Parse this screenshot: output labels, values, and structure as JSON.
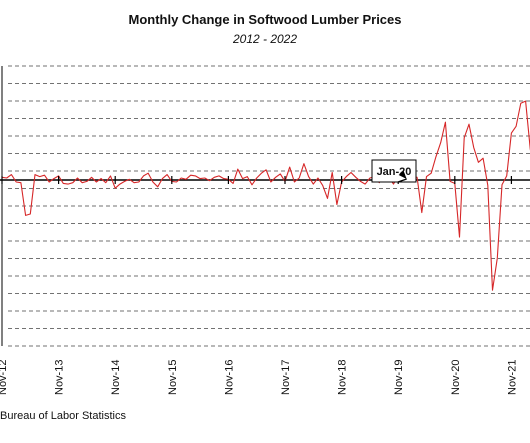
{
  "chart_data": {
    "type": "line",
    "title": "Monthly Change in Softwood Lumber Prices",
    "subtitle": "2012 - 2022",
    "xlabel": "",
    "ylabel": "",
    "x_tick_labels": [
      "Nov-12",
      "Nov-13",
      "Nov-14",
      "Nov-15",
      "Nov-16",
      "Nov-17",
      "Nov-18",
      "Nov-19",
      "Nov-20",
      "Nov-21"
    ],
    "ylim": [
      -18,
      12
    ],
    "grid": true,
    "annotation": {
      "text": "Jan-20",
      "x_index": 86
    },
    "series": [
      {
        "color": "#d62728",
        "values": [
          0.4,
          0.3,
          0.8,
          -0.3,
          -0.4,
          -5.2,
          -5.0,
          0.8,
          0.5,
          0.7,
          -0.3,
          0.2,
          0.6,
          -0.5,
          -0.6,
          -0.4,
          0.3,
          -0.4,
          -0.2,
          0.4,
          -0.3,
          0.2,
          -0.4,
          0.6,
          -1.2,
          -0.6,
          -0.2,
          0.1,
          -0.4,
          -0.3,
          0.6,
          1.0,
          -0.3,
          -1.0,
          0.2,
          0.8,
          -0.2,
          -0.3,
          0.3,
          0.1,
          0.7,
          0.6,
          0.2,
          0.3,
          -0.1,
          0.4,
          0.6,
          0.2,
          0.1,
          -0.5,
          1.6,
          0.2,
          0.5,
          -0.7,
          0.3,
          1.0,
          1.5,
          -0.3,
          0.4,
          0.9,
          -0.2,
          1.9,
          -0.3,
          0.3,
          2.4,
          0.5,
          -0.6,
          0.3,
          -0.8,
          -2.7,
          1.1,
          -3.6,
          -0.3,
          0.5,
          1.1,
          0.4,
          -0.2,
          -0.6,
          0.3,
          0.5,
          -0.4,
          1.9,
          0.4,
          -0.6,
          0.7,
          0.3,
          0.1,
          0.5,
          0.4,
          -4.8,
          0.5,
          1.0,
          3.4,
          5.5,
          8.5,
          -0.2,
          -0.5,
          -8.4,
          6.2,
          8.2,
          4.8,
          2.6,
          3.2,
          -0.8,
          -16.2,
          -11.5,
          -0.7,
          0.6,
          6.9,
          7.9,
          11.3,
          11.6,
          4.5,
          1.2
        ]
      }
    ],
    "source": "Bureau of Labor Statistics"
  }
}
